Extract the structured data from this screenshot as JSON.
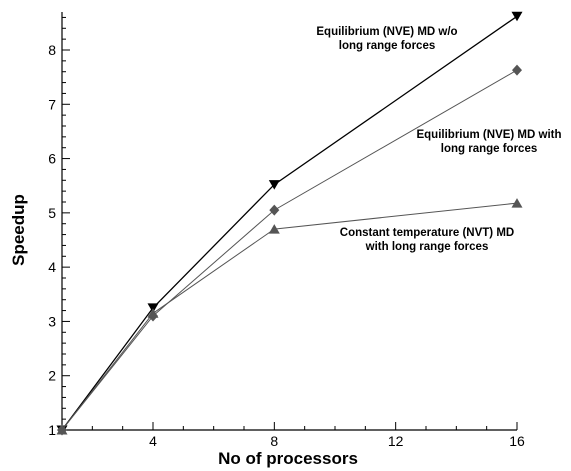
{
  "chart_data": {
    "type": "line",
    "title": "",
    "xlabel": "No of processors",
    "ylabel": "Speedup",
    "xlim": [
      1,
      16
    ],
    "ylim": [
      1,
      8.7
    ],
    "xticks": [
      4,
      8,
      12,
      16
    ],
    "xtick_labels": [
      "4",
      "8",
      "12",
      "16"
    ],
    "yticks": [
      1,
      2,
      3,
      4,
      5,
      6,
      7,
      8
    ],
    "ytick_labels": [
      "1",
      "2",
      "3",
      "4",
      "5",
      "6",
      "7",
      "8"
    ],
    "grid": false,
    "legend": "none (inline annotations)",
    "x": [
      1,
      4,
      8,
      16
    ],
    "series": [
      {
        "values": [
          1,
          3.25,
          5.52,
          8.62
        ],
        "marker": "triangle-down",
        "color": "#000000",
        "annotation_lines": [
          "Equilibrium (NVE) MD w/o",
          "long range forces"
        ]
      },
      {
        "values": [
          1,
          3.1,
          5.05,
          7.63
        ],
        "marker": "diamond",
        "color": "#555555",
        "annotation_lines": [
          "Equilibrium (NVE) MD with",
          "long range forces"
        ]
      },
      {
        "values": [
          1,
          3.15,
          4.7,
          5.18
        ],
        "marker": "triangle-up",
        "color": "#555555",
        "annotation_lines": [
          "Constant temperature (NVT) MD",
          "with long range forces"
        ]
      }
    ]
  }
}
